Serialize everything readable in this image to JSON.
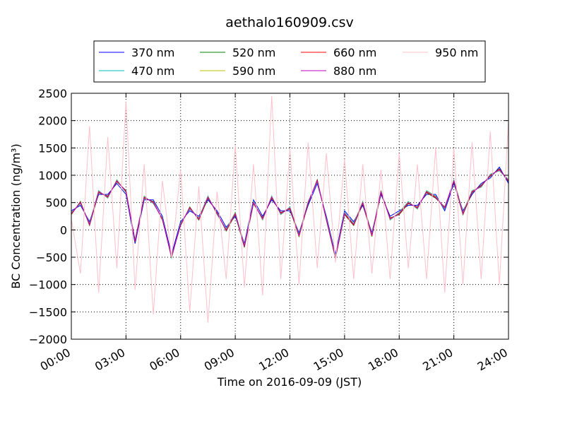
{
  "chart_data": {
    "type": "line",
    "title": "aethalo160909.csv",
    "x_label": "Time on 2016-09-09 (JST)",
    "y_label": "BC Concentration (ng/m³)",
    "xlim": [
      0,
      24
    ],
    "ylim": [
      -2000,
      2500
    ],
    "xticks": [
      {
        "value": 0,
        "label": "00:00"
      },
      {
        "value": 3,
        "label": "03:00"
      },
      {
        "value": 6,
        "label": "06:00"
      },
      {
        "value": 9,
        "label": "09:00"
      },
      {
        "value": 12,
        "label": "12:00"
      },
      {
        "value": 15,
        "label": "15:00"
      },
      {
        "value": 18,
        "label": "18:00"
      },
      {
        "value": 21,
        "label": "21:00"
      },
      {
        "value": 24,
        "label": "24:00"
      }
    ],
    "yticks": [
      {
        "value": -2000,
        "label": "−2000"
      },
      {
        "value": -1500,
        "label": "−1500"
      },
      {
        "value": -1000,
        "label": "−1000"
      },
      {
        "value": -500,
        "label": "−500"
      },
      0,
      500,
      1000,
      1500,
      2000,
      2500
    ],
    "grid": true,
    "legend": "top",
    "x": [
      0,
      0.5,
      1,
      1.5,
      2,
      2.5,
      3,
      3.5,
      4,
      4.5,
      5,
      5.5,
      6,
      6.5,
      7,
      7.5,
      8,
      8.5,
      9,
      9.5,
      10,
      10.5,
      11,
      11.5,
      12,
      12.5,
      13,
      13.5,
      14,
      14.5,
      15,
      15.5,
      16,
      16.5,
      17,
      17.5,
      18,
      18.5,
      19,
      19.5,
      20,
      20.5,
      21,
      21.5,
      22,
      22.5,
      23,
      23.5,
      24
    ],
    "series": [
      {
        "name": "370 nm",
        "color": "#0000ff",
        "values": [
          350,
          450,
          150,
          650,
          650,
          850,
          650,
          -250,
          550,
          550,
          250,
          -450,
          150,
          350,
          250,
          550,
          350,
          50,
          250,
          -250,
          550,
          250,
          550,
          350,
          350,
          -50,
          450,
          850,
          250,
          -450,
          350,
          150,
          450,
          -50,
          650,
          250,
          350,
          450,
          450,
          650,
          650,
          350,
          850,
          350,
          650,
          850,
          950,
          1150,
          850
        ]
      },
      {
        "name": "470 nm",
        "color": "#00bfbf",
        "values": [
          320,
          480,
          120,
          720,
          580,
          920,
          680,
          -180,
          620,
          480,
          220,
          -520,
          120,
          380,
          220,
          620,
          280,
          20,
          320,
          -280,
          520,
          180,
          620,
          280,
          420,
          -80,
          520,
          880,
          220,
          -480,
          320,
          120,
          520,
          -80,
          720,
          180,
          320,
          520,
          380,
          720,
          620,
          380,
          920,
          320,
          720,
          780,
          1020,
          1080,
          920
        ]
      },
      {
        "name": "520 nm",
        "color": "#008000",
        "values": [
          280,
          520,
          80,
          680,
          620,
          880,
          720,
          -220,
          580,
          520,
          180,
          -480,
          80,
          420,
          180,
          580,
          320,
          -20,
          280,
          -320,
          480,
          220,
          580,
          320,
          380,
          -120,
          480,
          920,
          180,
          -520,
          280,
          80,
          480,
          -120,
          680,
          220,
          280,
          480,
          420,
          680,
          580,
          420,
          880,
          280,
          680,
          820,
          980,
          1120,
          880
        ]
      },
      {
        "name": "590 nm",
        "color": "#bfbf00",
        "values": [
          310,
          490,
          110,
          710,
          590,
          910,
          690,
          -190,
          610,
          490,
          210,
          -510,
          110,
          390,
          210,
          610,
          290,
          10,
          310,
          -290,
          510,
          190,
          610,
          290,
          410,
          -90,
          510,
          890,
          210,
          -490,
          310,
          110,
          510,
          -90,
          710,
          190,
          310,
          510,
          390,
          710,
          610,
          390,
          910,
          310,
          710,
          790,
          1010,
          1090,
          910
        ]
      },
      {
        "name": "660 nm",
        "color": "#ff0000",
        "values": [
          290,
          510,
          90,
          690,
          610,
          890,
          710,
          -210,
          590,
          510,
          190,
          -490,
          90,
          410,
          190,
          590,
          310,
          -10,
          290,
          -310,
          490,
          210,
          590,
          310,
          390,
          -110,
          490,
          910,
          190,
          -510,
          290,
          90,
          490,
          -110,
          690,
          210,
          290,
          490,
          410,
          690,
          590,
          410,
          890,
          290,
          690,
          810,
          990,
          1110,
          890
        ]
      },
      {
        "name": "880 nm",
        "color": "#bf00bf",
        "values": [
          300,
          500,
          100,
          700,
          600,
          900,
          700,
          -200,
          600,
          500,
          200,
          -500,
          100,
          400,
          200,
          600,
          300,
          0,
          300,
          -300,
          500,
          200,
          600,
          300,
          400,
          -100,
          500,
          900,
          200,
          -500,
          300,
          100,
          500,
          -100,
          700,
          200,
          300,
          500,
          400,
          700,
          600,
          400,
          900,
          300,
          700,
          800,
          1000,
          1100,
          900
        ]
      },
      {
        "name": "950 nm",
        "color": "#ffc0cb",
        "values": [
          200,
          -800,
          1900,
          -1150,
          1700,
          -700,
          2350,
          -1100,
          1200,
          -1550,
          900,
          -500,
          1100,
          -1500,
          800,
          -1700,
          700,
          -900,
          1550,
          -1050,
          1200,
          -1200,
          2450,
          -900,
          1500,
          -1000,
          1600,
          -700,
          1400,
          -600,
          1300,
          -900,
          1200,
          -800,
          1100,
          -900,
          1400,
          -700,
          1200,
          -900,
          1500,
          -1150,
          1500,
          -1000,
          1600,
          -900,
          1800,
          -1000,
          2000
        ]
      }
    ]
  }
}
